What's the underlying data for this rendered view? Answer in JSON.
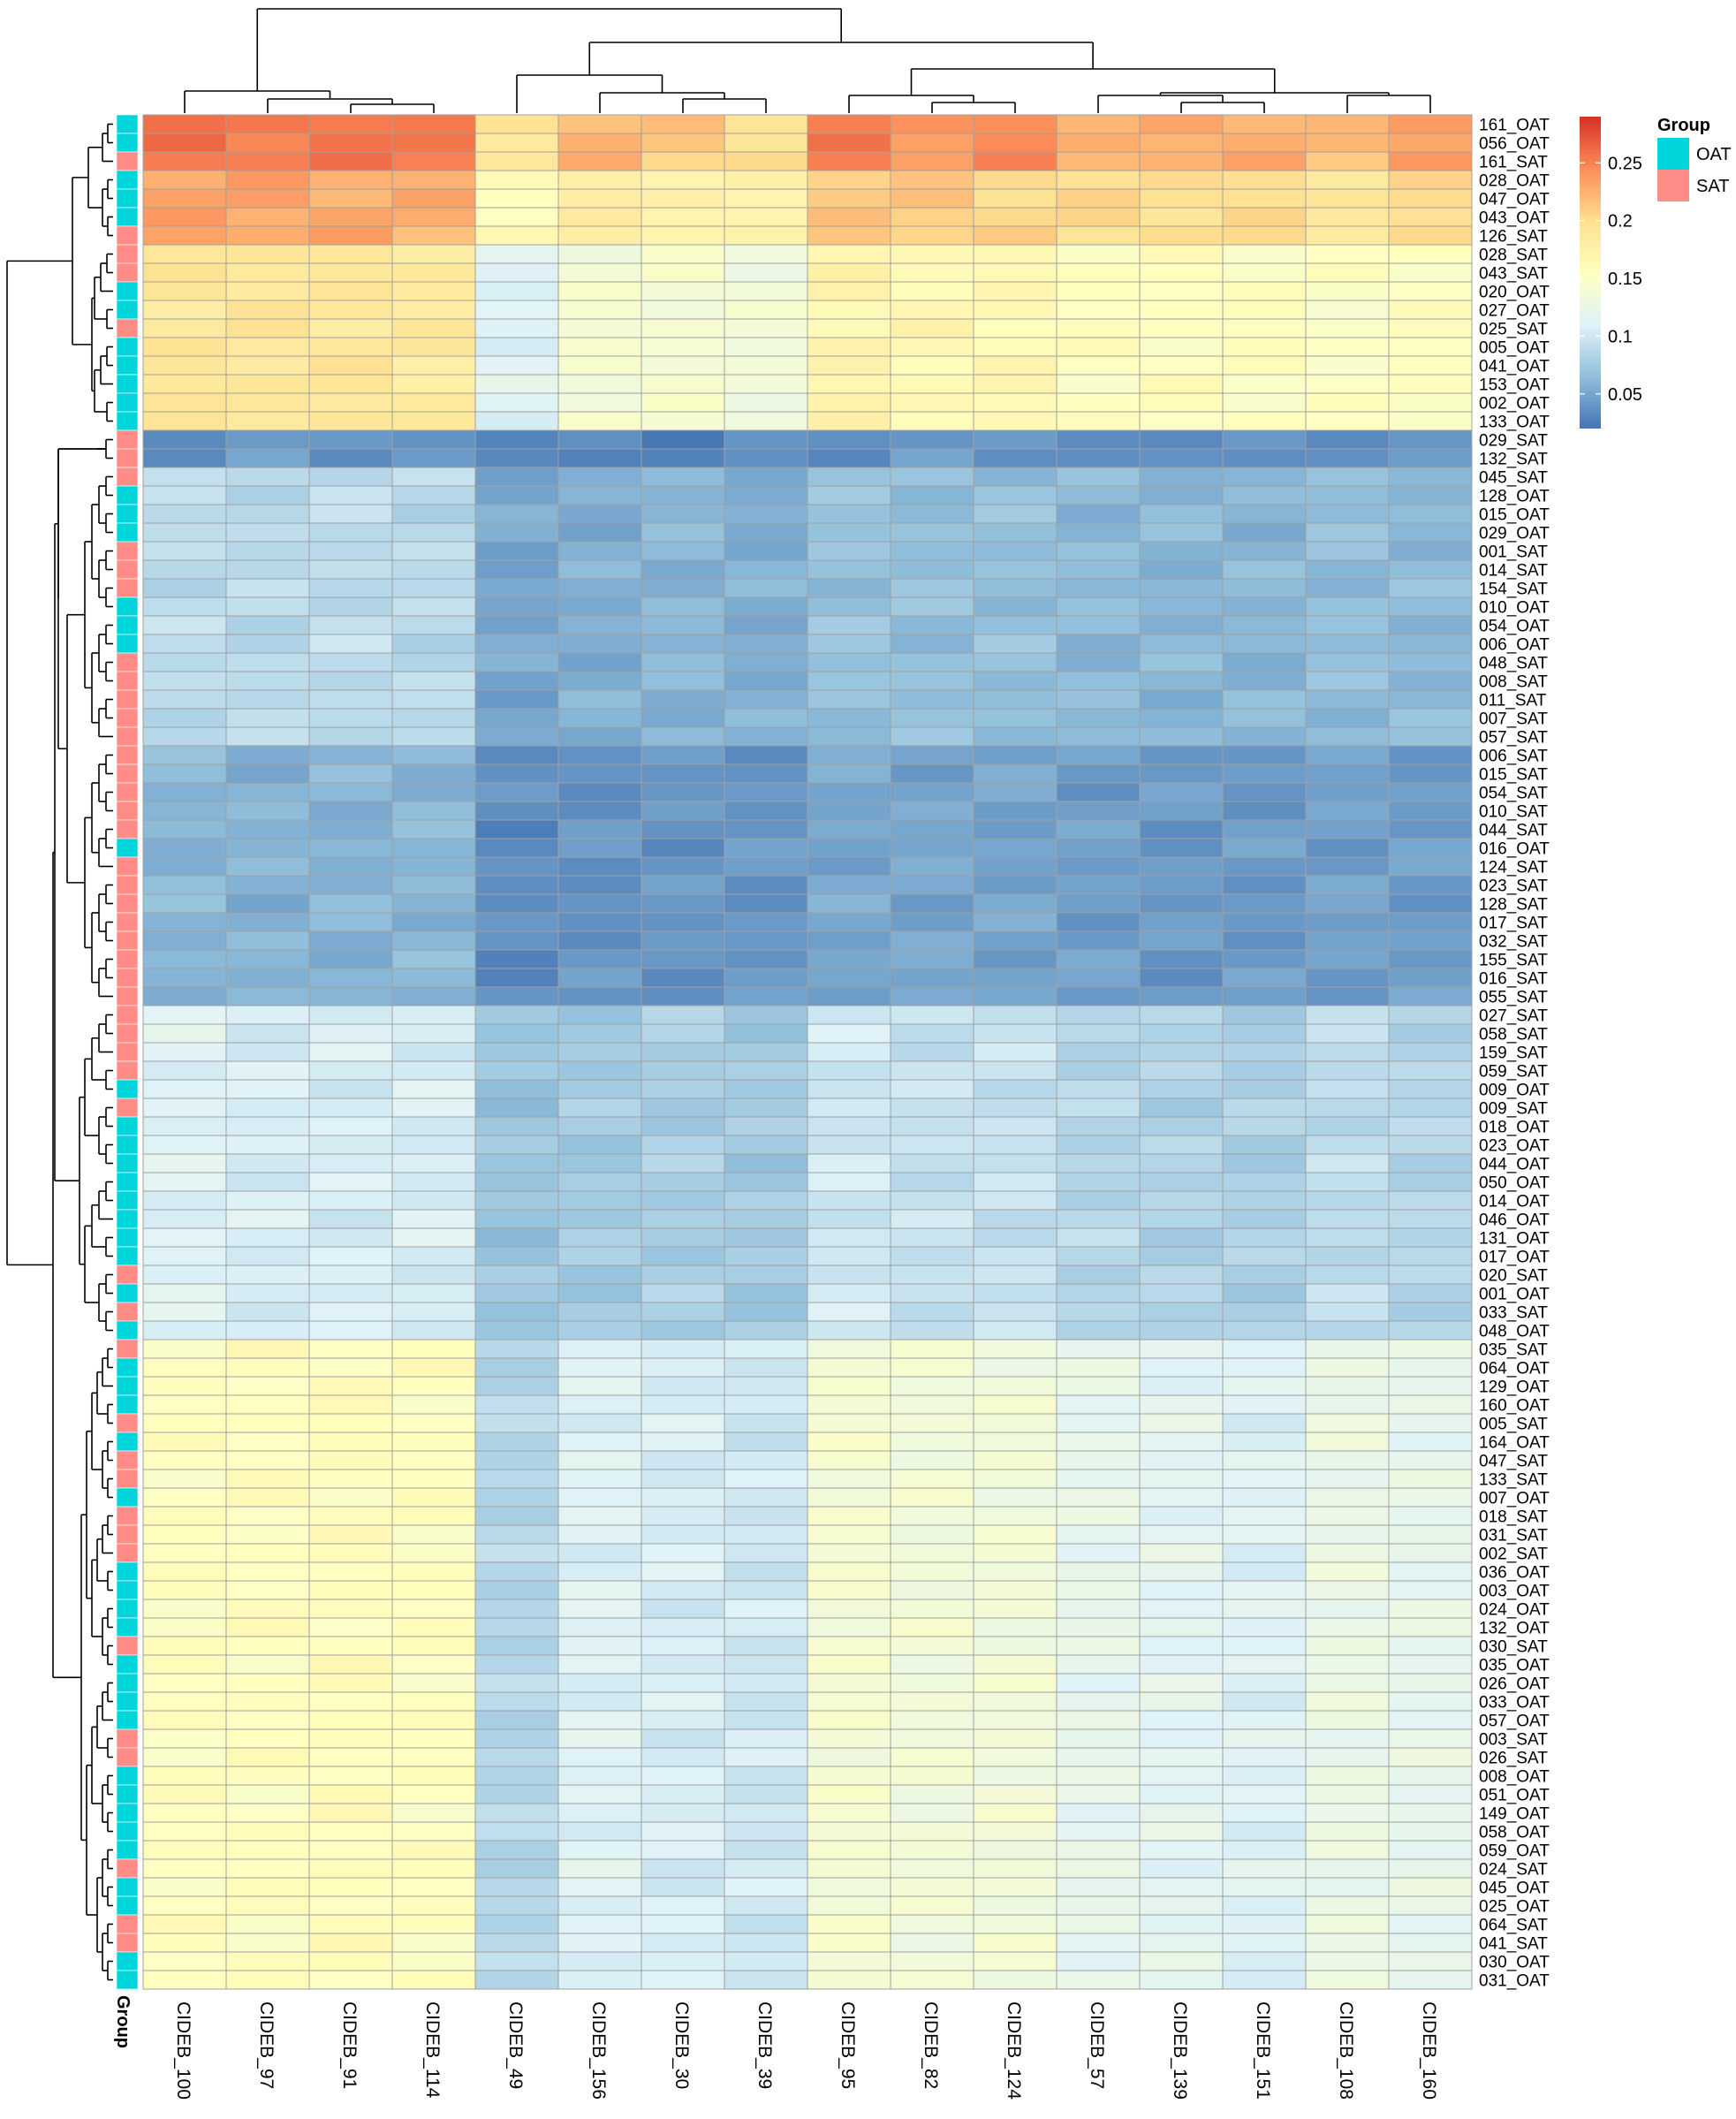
{
  "chart_data": {
    "type": "heatmap",
    "title": "",
    "columns": [
      "CIDEB_100",
      "CIDEB_97",
      "CIDEB_91",
      "CIDEB_114",
      "CIDEB_49",
      "CIDEB_156",
      "CIDEB_30",
      "CIDEB_39",
      "CIDEB_95",
      "CIDEB_82",
      "CIDEB_124",
      "CIDEB_57",
      "CIDEB_139",
      "CIDEB_151",
      "CIDEB_108",
      "CIDEB_160"
    ],
    "rows": [
      "161_OAT",
      "056_OAT",
      "161_SAT",
      "028_OAT",
      "047_OAT",
      "043_OAT",
      "126_SAT",
      "028_SAT",
      "043_SAT",
      "020_OAT",
      "027_OAT",
      "025_SAT",
      "005_OAT",
      "041_OAT",
      "153_OAT",
      "002_OAT",
      "133_OAT",
      "029_SAT",
      "132_SAT",
      "045_SAT",
      "128_OAT",
      "015_OAT",
      "029_OAT",
      "001_SAT",
      "014_SAT",
      "154_SAT",
      "010_OAT",
      "054_OAT",
      "006_OAT",
      "048_SAT",
      "008_SAT",
      "011_SAT",
      "007_SAT",
      "057_SAT",
      "006_SAT",
      "015_SAT",
      "054_SAT",
      "010_SAT",
      "044_SAT",
      "016_OAT",
      "124_SAT",
      "023_SAT",
      "128_SAT",
      "017_SAT",
      "032_SAT",
      "155_SAT",
      "016_SAT",
      "055_SAT",
      "027_SAT",
      "058_SAT",
      "159_SAT",
      "059_SAT",
      "009_OAT",
      "009_SAT",
      "018_OAT",
      "023_OAT",
      "044_OAT",
      "050_OAT",
      "014_OAT",
      "046_OAT",
      "131_OAT",
      "017_OAT",
      "020_SAT",
      "001_OAT",
      "033_SAT",
      "048_OAT",
      "035_SAT",
      "064_OAT",
      "129_OAT",
      "160_OAT",
      "005_SAT",
      "164_OAT",
      "047_SAT",
      "133_SAT",
      "007_OAT",
      "018_SAT",
      "031_SAT",
      "002_SAT",
      "036_OAT",
      "003_OAT",
      "024_OAT",
      "132_OAT",
      "030_SAT",
      "035_OAT",
      "026_OAT",
      "033_OAT",
      "057_OAT",
      "003_SAT",
      "026_SAT",
      "008_OAT",
      "051_OAT",
      "149_OAT",
      "058_OAT",
      "059_OAT",
      "024_SAT",
      "045_OAT",
      "025_OAT",
      "064_SAT",
      "041_SAT",
      "030_OAT",
      "031_OAT"
    ],
    "value_range": [
      0.02,
      0.29
    ],
    "colorbar": {
      "ticks": [
        0.25,
        0.2,
        0.15,
        0.1,
        0.05
      ],
      "colors": [
        "#4575b4",
        "#91bfdb",
        "#e0f3f8",
        "#ffffbf",
        "#fee090",
        "#fc8d59",
        "#d73027"
      ]
    },
    "annotation": {
      "name": "Group",
      "levels": [
        {
          "label": "OAT",
          "color": "#00d5dc"
        },
        {
          "label": "SAT",
          "color": "#ff8c86"
        }
      ],
      "assignments": [
        "OAT",
        "OAT",
        "SAT",
        "OAT",
        "OAT",
        "OAT",
        "SAT",
        "SAT",
        "SAT",
        "OAT",
        "OAT",
        "SAT",
        "OAT",
        "OAT",
        "OAT",
        "OAT",
        "OAT",
        "SAT",
        "SAT",
        "SAT",
        "OAT",
        "OAT",
        "OAT",
        "SAT",
        "SAT",
        "SAT",
        "OAT",
        "OAT",
        "OAT",
        "SAT",
        "SAT",
        "SAT",
        "SAT",
        "SAT",
        "SAT",
        "SAT",
        "SAT",
        "SAT",
        "SAT",
        "OAT",
        "SAT",
        "SAT",
        "SAT",
        "SAT",
        "SAT",
        "SAT",
        "SAT",
        "SAT",
        "SAT",
        "SAT",
        "SAT",
        "SAT",
        "OAT",
        "SAT",
        "OAT",
        "OAT",
        "OAT",
        "OAT",
        "OAT",
        "OAT",
        "OAT",
        "OAT",
        "SAT",
        "OAT",
        "SAT",
        "OAT",
        "SAT",
        "OAT",
        "OAT",
        "OAT",
        "SAT",
        "OAT",
        "SAT",
        "SAT",
        "OAT",
        "SAT",
        "SAT",
        "SAT",
        "OAT",
        "OAT",
        "OAT",
        "OAT",
        "SAT",
        "OAT",
        "OAT",
        "OAT",
        "OAT",
        "SAT",
        "SAT",
        "OAT",
        "OAT",
        "OAT",
        "OAT",
        "OAT",
        "SAT",
        "OAT",
        "OAT",
        "SAT",
        "SAT",
        "OAT",
        "OAT"
      ]
    },
    "row_blocks": [
      {
        "rows": [
          0,
          2
        ],
        "profile": [
          0.255,
          0.255,
          0.255,
          0.255,
          0.19,
          0.225,
          0.21,
          0.2,
          0.25,
          0.24,
          0.245,
          0.225,
          0.225,
          0.23,
          0.215,
          0.24
        ]
      },
      {
        "rows": [
          3,
          6
        ],
        "profile": [
          0.235,
          0.23,
          0.23,
          0.225,
          0.16,
          0.18,
          0.175,
          0.17,
          0.215,
          0.21,
          0.205,
          0.2,
          0.2,
          0.2,
          0.19,
          0.2
        ]
      },
      {
        "rows": [
          7,
          16
        ],
        "profile": [
          0.19,
          0.19,
          0.19,
          0.185,
          0.11,
          0.14,
          0.14,
          0.135,
          0.17,
          0.165,
          0.165,
          0.155,
          0.155,
          0.155,
          0.15,
          0.155
        ]
      },
      {
        "rows": [
          17,
          18
        ],
        "profile": [
          0.04,
          0.04,
          0.04,
          0.04,
          0.03,
          0.03,
          0.03,
          0.03,
          0.04,
          0.04,
          0.04,
          0.035,
          0.035,
          0.035,
          0.04,
          0.035
        ]
      },
      {
        "rows": [
          19,
          33
        ],
        "profile": [
          0.09,
          0.088,
          0.09,
          0.088,
          0.05,
          0.055,
          0.06,
          0.055,
          0.068,
          0.066,
          0.066,
          0.062,
          0.06,
          0.06,
          0.065,
          0.062
        ]
      },
      {
        "rows": [
          34,
          47
        ],
        "profile": [
          0.06,
          0.058,
          0.058,
          0.06,
          0.035,
          0.038,
          0.04,
          0.04,
          0.05,
          0.05,
          0.048,
          0.045,
          0.042,
          0.042,
          0.046,
          0.044
        ]
      },
      {
        "rows": [
          48,
          65
        ],
        "profile": [
          0.11,
          0.105,
          0.105,
          0.105,
          0.07,
          0.075,
          0.078,
          0.075,
          0.1,
          0.095,
          0.095,
          0.085,
          0.082,
          0.08,
          0.09,
          0.085
        ]
      },
      {
        "rows": [
          66,
          100
        ],
        "profile": [
          0.155,
          0.155,
          0.158,
          0.155,
          0.085,
          0.11,
          0.105,
          0.1,
          0.14,
          0.135,
          0.135,
          0.12,
          0.115,
          0.11,
          0.125,
          0.12
        ]
      }
    ]
  }
}
